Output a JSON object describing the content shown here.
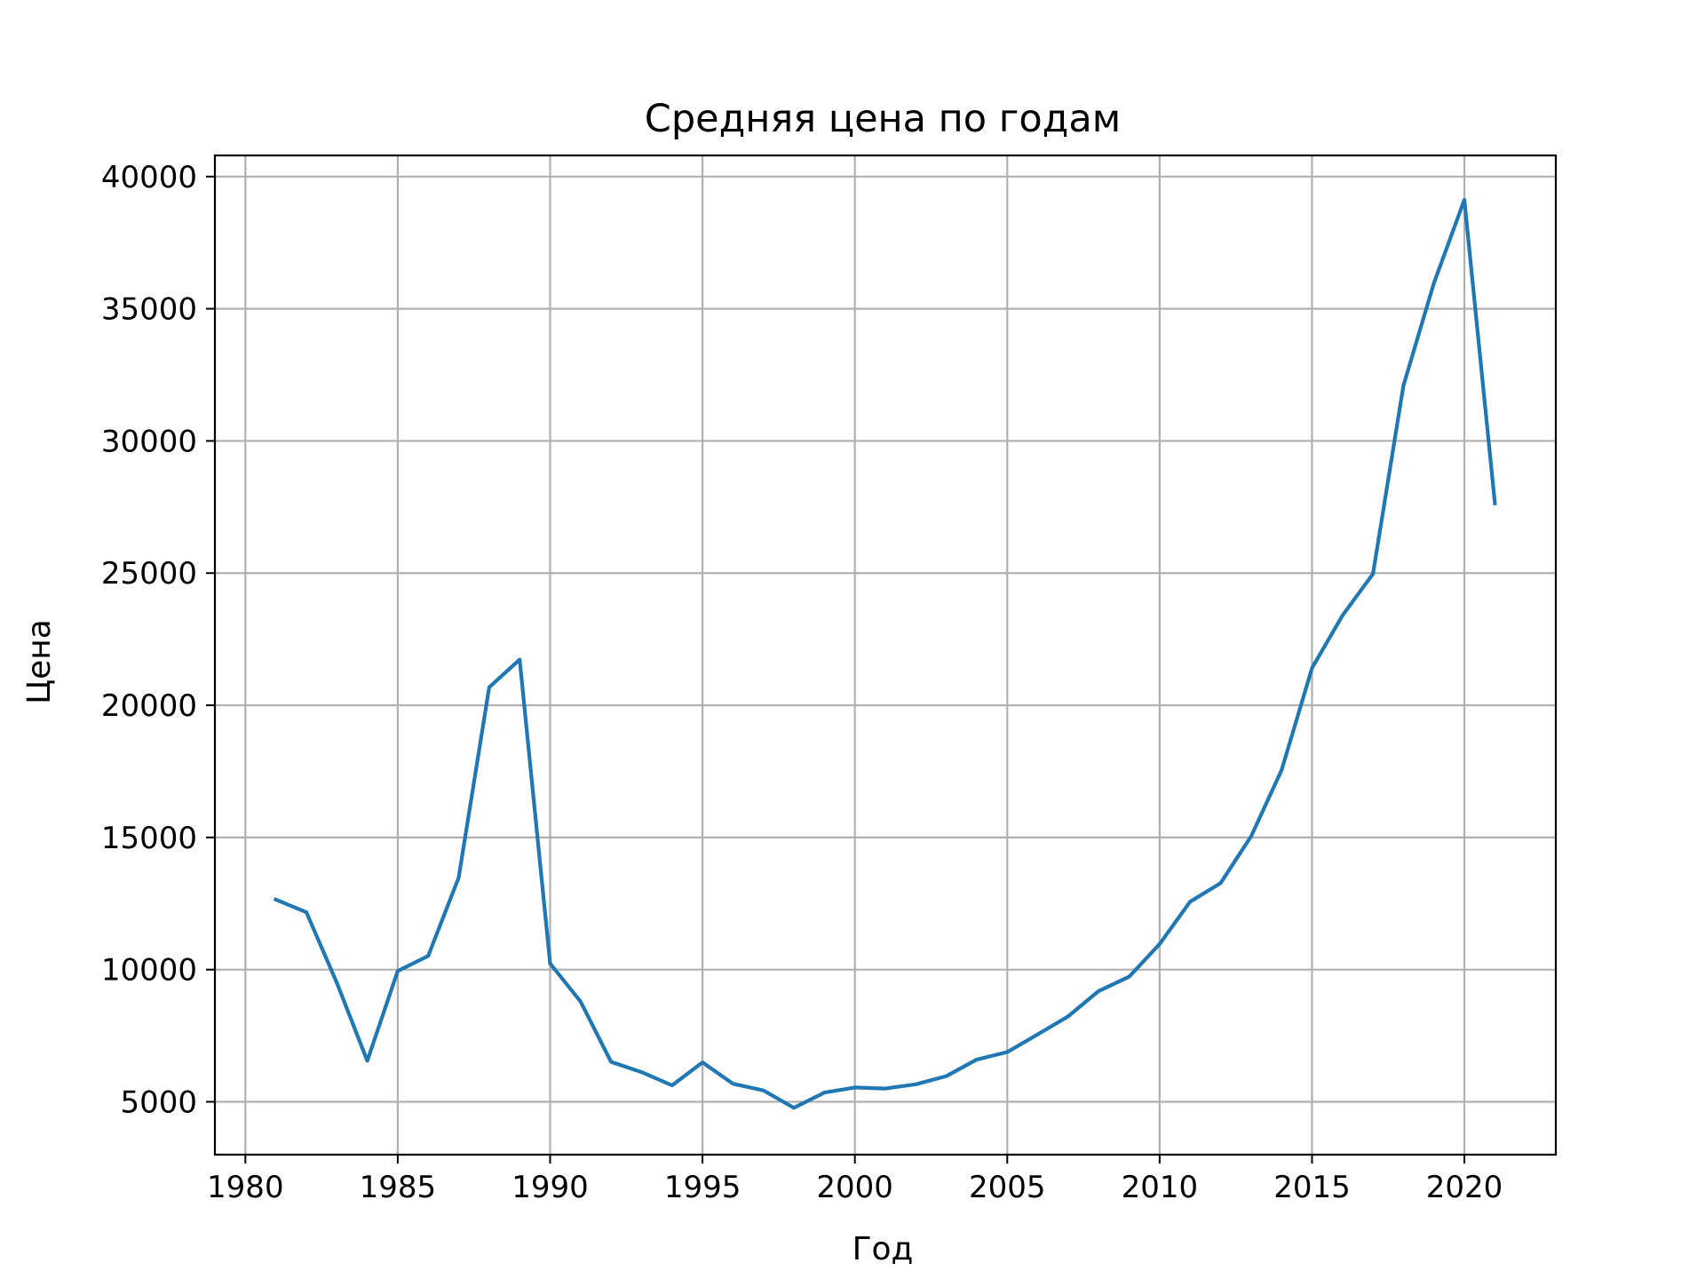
{
  "chart_data": {
    "type": "line",
    "title": "Средняя цена по годам",
    "xlabel": "Год",
    "ylabel": "Цена",
    "xlim": [
      1979,
      2023
    ],
    "ylim": [
      3000,
      40800
    ],
    "xticks": [
      1980,
      1985,
      1990,
      1995,
      2000,
      2005,
      2010,
      2015,
      2020
    ],
    "yticks": [
      5000,
      10000,
      15000,
      20000,
      25000,
      30000,
      35000,
      40000
    ],
    "grid": true,
    "legend": "none",
    "series": [
      {
        "color": "#1f77b4",
        "x": [
          1981,
          1982,
          1983,
          1984,
          1985,
          1986,
          1987,
          1988,
          1989,
          1990,
          1991,
          1992,
          1993,
          1994,
          1995,
          1996,
          1997,
          1998,
          1999,
          2000,
          2001,
          2002,
          2003,
          2004,
          2005,
          2006,
          2007,
          2008,
          2009,
          2010,
          2011,
          2012,
          2013,
          2014,
          2015,
          2016,
          2017,
          2018,
          2019,
          2020,
          2021
        ],
        "y": [
          12650,
          12170,
          9500,
          6550,
          9950,
          10520,
          13480,
          20680,
          21730,
          10230,
          8790,
          6510,
          6120,
          5620,
          6490,
          5680,
          5430,
          4770,
          5350,
          5540,
          5500,
          5660,
          5970,
          6600,
          6880,
          7550,
          8230,
          9190,
          9730,
          10970,
          12570,
          13270,
          15040,
          17540,
          21410,
          23400,
          24970,
          32090,
          35970,
          39120,
          27640
        ]
      }
    ]
  }
}
